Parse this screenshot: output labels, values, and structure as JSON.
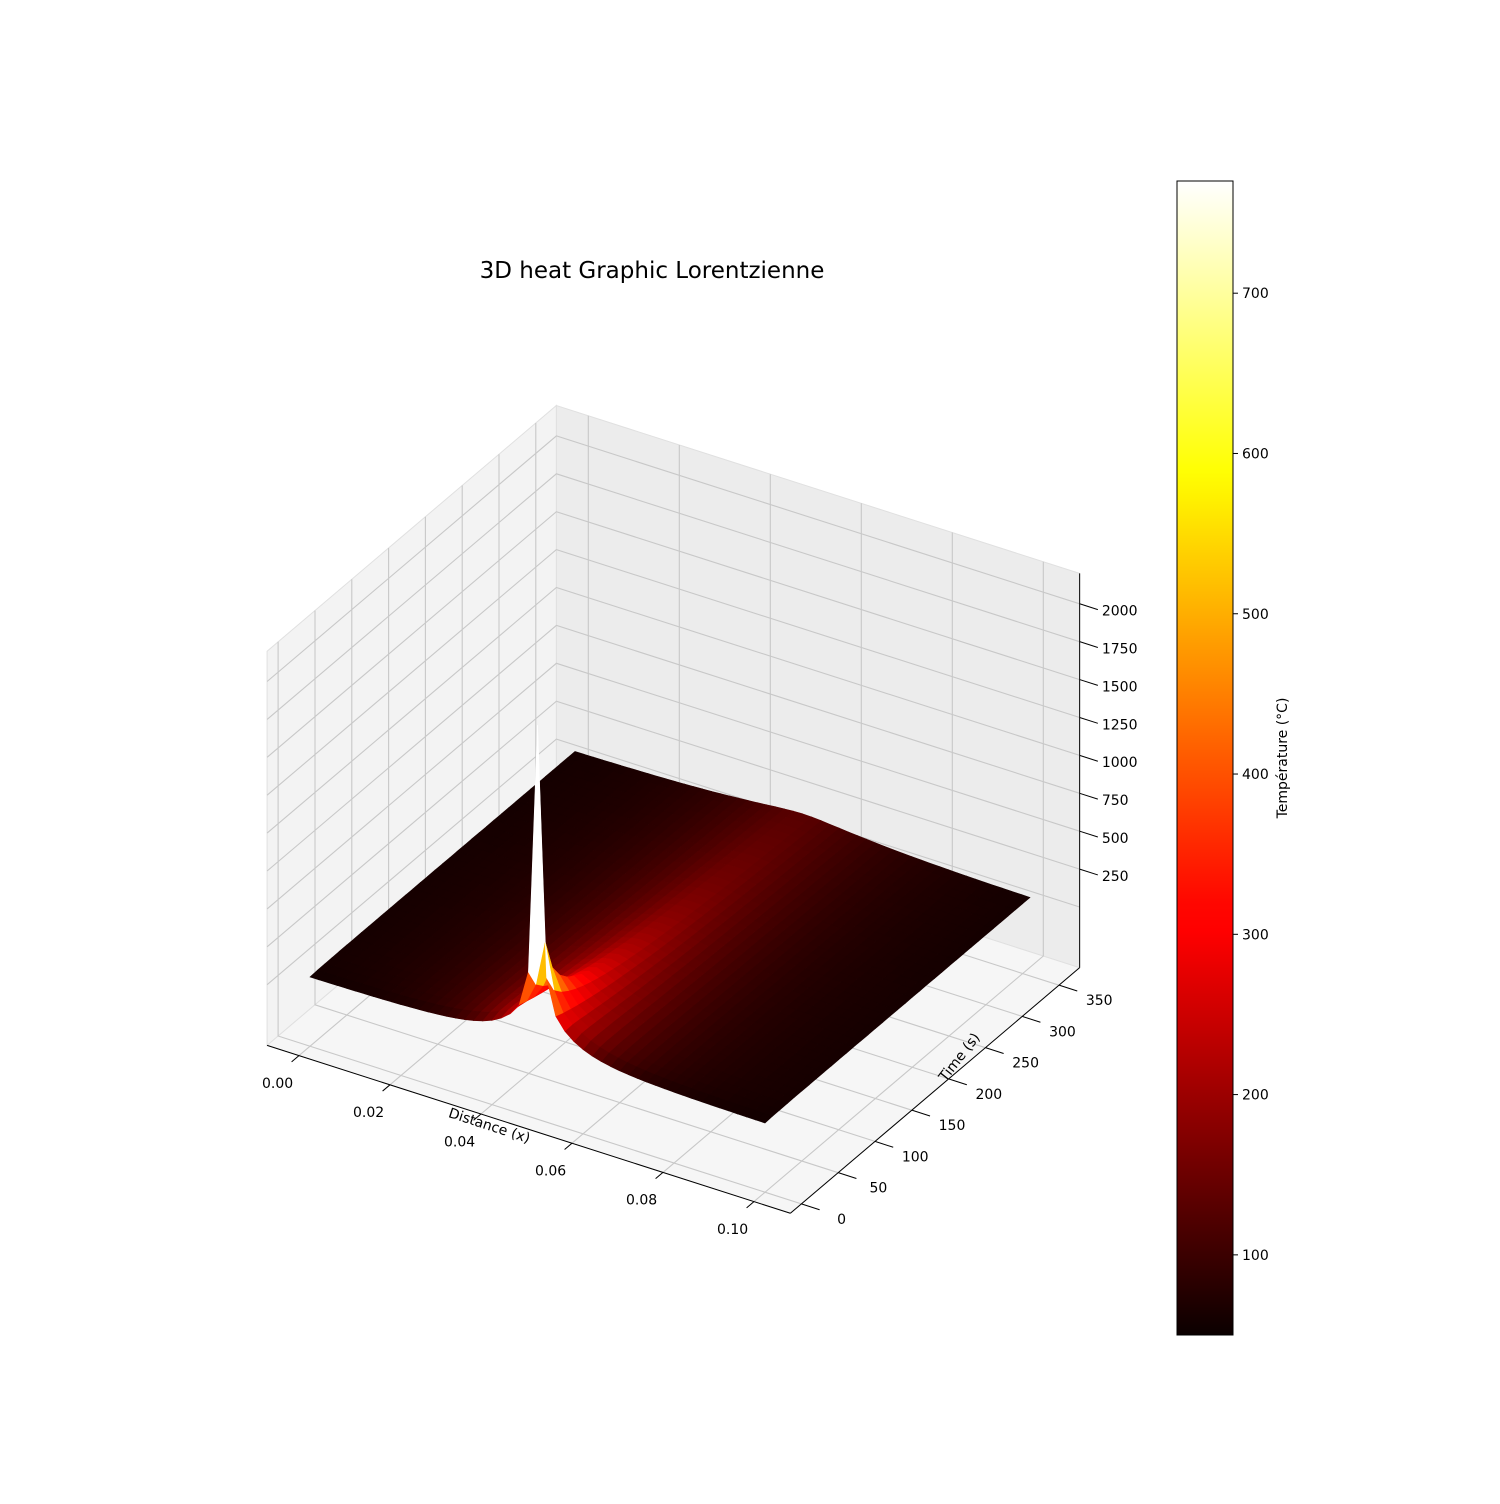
{
  "chart_data": {
    "type": "surface3d",
    "title": "3D heat Graphic Lorentzienne",
    "xlabel": "Distance (x)",
    "ylabel": "Time (s)",
    "zlabel": "",
    "colormap": "hot",
    "x_ticks": [
      "0.00",
      "0.02",
      "0.04",
      "0.06",
      "0.08",
      "0.10"
    ],
    "x_tick_values": [
      0.0,
      0.02,
      0.04,
      0.06,
      0.08,
      0.1
    ],
    "y_ticks": [
      "0",
      "50",
      "100",
      "150",
      "200",
      "250",
      "300",
      "350"
    ],
    "y_tick_values": [
      0,
      50,
      100,
      150,
      200,
      250,
      300,
      350
    ],
    "z_ticks": [
      "250",
      "500",
      "750",
      "1000",
      "1250",
      "1500",
      "1750",
      "2000"
    ],
    "z_tick_values": [
      250,
      500,
      750,
      1000,
      1250,
      1500,
      1750,
      2000
    ],
    "xlim": [
      0.0,
      0.1
    ],
    "ylim": [
      0,
      360
    ],
    "zlim": [
      50,
      2200
    ],
    "surface": {
      "description_of_values": "Temperature T(x,t): Lorentzian peak centred at x=0.05, peak ~2000 at t=0, decaying with time to ~60-150 near edges",
      "x_center": 0.05,
      "peak_value_t0": 2000,
      "ambient": 50
    },
    "colorbar": {
      "label": "Température (°C)",
      "ticks": [
        "100",
        "200",
        "300",
        "400",
        "500",
        "600",
        "700"
      ],
      "tick_values": [
        100,
        200,
        300,
        400,
        500,
        600,
        700
      ],
      "vmin": 50,
      "vmax": 770
    },
    "grid": true
  }
}
